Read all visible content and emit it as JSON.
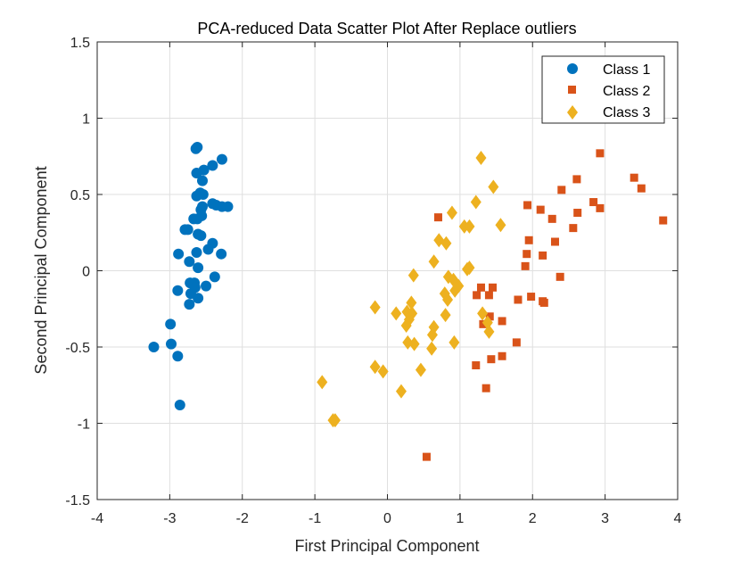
{
  "chart_data": {
    "type": "scatter",
    "title": "PCA-reduced Data Scatter Plot After Replace outliers",
    "xlabel": "First Principal Component",
    "ylabel": "Second Principal Component",
    "xlim": [
      -4,
      4
    ],
    "ylim": [
      -1.5,
      1.5
    ],
    "xticks": [
      -4,
      -3,
      -2,
      -1,
      0,
      1,
      2,
      3,
      4
    ],
    "yticks": [
      -1.5,
      -1,
      -0.5,
      0,
      0.5,
      1,
      1.5
    ],
    "xtick_labels": [
      "-4",
      "-3",
      "-2",
      "-1",
      "0",
      "1",
      "2",
      "3",
      "4"
    ],
    "ytick_labels": [
      "-1.5",
      "-1",
      "-0.5",
      "0",
      "0.5",
      "1",
      "1.5"
    ],
    "grid": true,
    "legend_position": "top-right",
    "series": [
      {
        "name": "Class 1",
        "marker": "circle",
        "color": "#0072BD",
        "points": [
          [
            -2.64,
            0.8
          ],
          [
            -2.62,
            0.81
          ],
          [
            -2.63,
            0.64
          ],
          [
            -2.53,
            0.66
          ],
          [
            -2.28,
            0.73
          ],
          [
            -2.41,
            0.69
          ],
          [
            -2.55,
            0.59
          ],
          [
            -2.58,
            0.51
          ],
          [
            -2.54,
            0.5
          ],
          [
            -2.63,
            0.49
          ],
          [
            -2.55,
            0.42
          ],
          [
            -2.57,
            0.4
          ],
          [
            -2.41,
            0.44
          ],
          [
            -2.36,
            0.43
          ],
          [
            -2.28,
            0.42
          ],
          [
            -2.2,
            0.42
          ],
          [
            -2.67,
            0.34
          ],
          [
            -2.62,
            0.34
          ],
          [
            -2.56,
            0.36
          ],
          [
            -2.79,
            0.27
          ],
          [
            -2.75,
            0.27
          ],
          [
            -2.61,
            0.24
          ],
          [
            -2.57,
            0.23
          ],
          [
            -2.41,
            0.18
          ],
          [
            -2.47,
            0.14
          ],
          [
            -2.29,
            0.11
          ],
          [
            -2.88,
            0.11
          ],
          [
            -2.63,
            0.12
          ],
          [
            -2.73,
            0.06
          ],
          [
            -2.61,
            0.02
          ],
          [
            -2.38,
            -0.04
          ],
          [
            -2.66,
            -0.08
          ],
          [
            -2.72,
            -0.08
          ],
          [
            -2.5,
            -0.1
          ],
          [
            -2.65,
            -0.11
          ],
          [
            -2.89,
            -0.13
          ],
          [
            -2.71,
            -0.15
          ],
          [
            -2.61,
            -0.18
          ],
          [
            -2.73,
            -0.22
          ],
          [
            -2.99,
            -0.35
          ],
          [
            -2.98,
            -0.48
          ],
          [
            -3.22,
            -0.5
          ],
          [
            -2.89,
            -0.56
          ],
          [
            -2.86,
            -0.88
          ]
        ]
      },
      {
        "name": "Class 2",
        "marker": "square",
        "color": "#D95319",
        "points": [
          [
            2.93,
            0.77
          ],
          [
            3.4,
            0.61
          ],
          [
            2.61,
            0.6
          ],
          [
            3.5,
            0.54
          ],
          [
            2.4,
            0.53
          ],
          [
            2.84,
            0.45
          ],
          [
            1.93,
            0.43
          ],
          [
            2.11,
            0.4
          ],
          [
            2.93,
            0.41
          ],
          [
            2.62,
            0.38
          ],
          [
            2.27,
            0.34
          ],
          [
            3.8,
            0.33
          ],
          [
            0.7,
            0.35
          ],
          [
            2.56,
            0.28
          ],
          [
            1.95,
            0.2
          ],
          [
            2.31,
            0.19
          ],
          [
            1.92,
            0.11
          ],
          [
            2.14,
            0.1
          ],
          [
            1.9,
            0.03
          ],
          [
            2.38,
            -0.04
          ],
          [
            1.29,
            -0.11
          ],
          [
            1.45,
            -0.11
          ],
          [
            1.23,
            -0.16
          ],
          [
            1.4,
            -0.16
          ],
          [
            1.98,
            -0.17
          ],
          [
            1.8,
            -0.19
          ],
          [
            2.14,
            -0.2
          ],
          [
            2.16,
            -0.21
          ],
          [
            1.41,
            -0.3
          ],
          [
            1.58,
            -0.33
          ],
          [
            1.32,
            -0.35
          ],
          [
            1.78,
            -0.47
          ],
          [
            1.58,
            -0.56
          ],
          [
            1.43,
            -0.58
          ],
          [
            1.22,
            -0.62
          ],
          [
            1.36,
            -0.77
          ],
          [
            0.54,
            -1.22
          ]
        ]
      },
      {
        "name": "Class 3",
        "marker": "diamond",
        "color": "#EDB120",
        "points": [
          [
            1.29,
            0.74
          ],
          [
            1.46,
            0.55
          ],
          [
            1.22,
            0.45
          ],
          [
            0.89,
            0.38
          ],
          [
            1.56,
            0.3
          ],
          [
            1.06,
            0.29
          ],
          [
            1.13,
            0.29
          ],
          [
            0.71,
            0.2
          ],
          [
            0.81,
            0.18
          ],
          [
            0.64,
            0.06
          ],
          [
            0.36,
            -0.03
          ],
          [
            0.84,
            -0.04
          ],
          [
            1.1,
            0.01
          ],
          [
            1.13,
            0.02
          ],
          [
            0.91,
            -0.06
          ],
          [
            0.93,
            -0.13
          ],
          [
            0.79,
            -0.15
          ],
          [
            0.98,
            -0.1
          ],
          [
            0.83,
            -0.19
          ],
          [
            0.33,
            -0.21
          ],
          [
            -0.17,
            -0.24
          ],
          [
            0.27,
            -0.27
          ],
          [
            0.34,
            -0.28
          ],
          [
            0.12,
            -0.28
          ],
          [
            0.3,
            -0.32
          ],
          [
            0.8,
            -0.29
          ],
          [
            0.64,
            -0.37
          ],
          [
            0.26,
            -0.36
          ],
          [
            1.31,
            -0.28
          ],
          [
            1.38,
            -0.34
          ],
          [
            1.4,
            -0.4
          ],
          [
            0.62,
            -0.42
          ],
          [
            0.28,
            -0.47
          ],
          [
            0.37,
            -0.48
          ],
          [
            0.92,
            -0.47
          ],
          [
            0.61,
            -0.51
          ],
          [
            -0.17,
            -0.63
          ],
          [
            -0.06,
            -0.66
          ],
          [
            0.46,
            -0.65
          ],
          [
            -0.9,
            -0.73
          ],
          [
            0.19,
            -0.79
          ],
          [
            -0.75,
            -0.98
          ],
          [
            -0.72,
            -0.98
          ]
        ]
      }
    ]
  }
}
